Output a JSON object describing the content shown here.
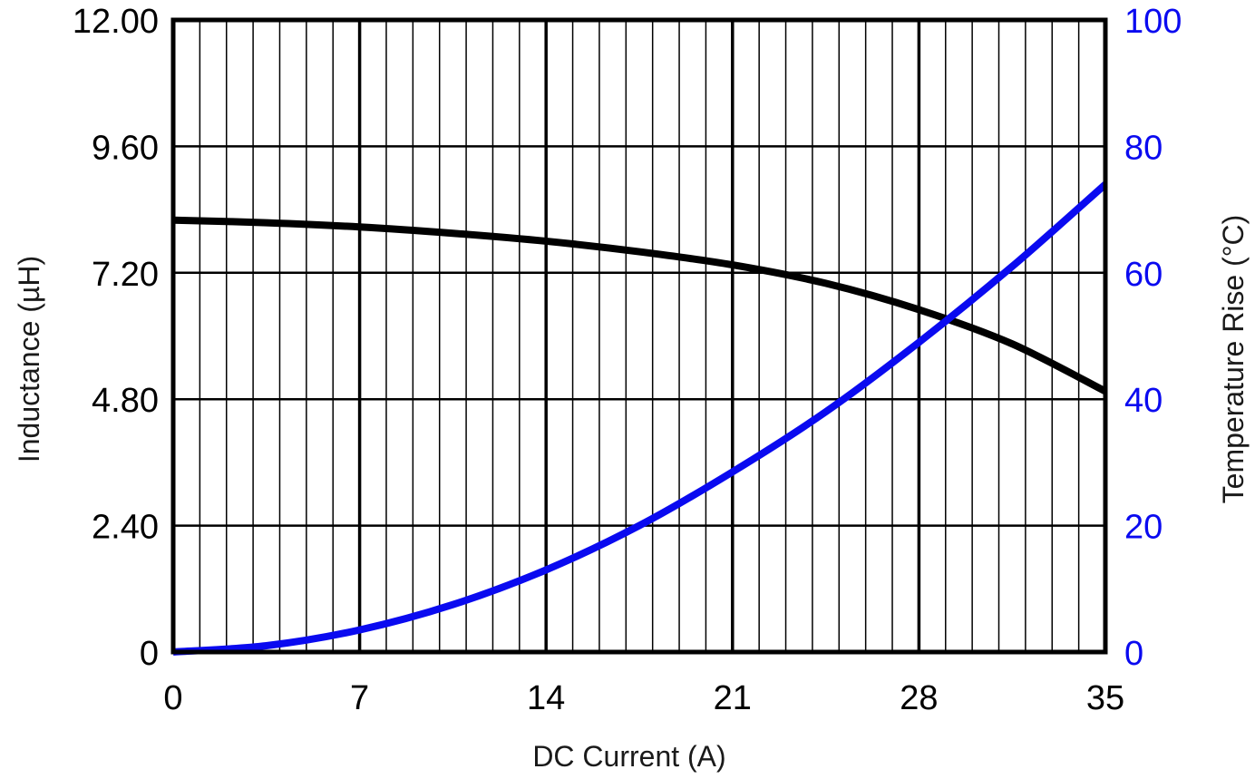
{
  "chart_data": {
    "type": "line",
    "title": "",
    "xlabel": "DC Current (A)",
    "ylabel": "Inductance (µH)",
    "ylabel_right": "Temperature Rise (°C)",
    "xlim": [
      0,
      35
    ],
    "ylim": [
      0,
      12
    ],
    "ylim_right": [
      0,
      100
    ],
    "grid": true,
    "x_ticks": [
      "0",
      "7",
      "14",
      "21",
      "28",
      "35"
    ],
    "y_ticks_left": [
      "0",
      "2.40",
      "4.80",
      "7.20",
      "9.60",
      "12.00"
    ],
    "y_ticks_right": [
      "0",
      "20",
      "40",
      "60",
      "80",
      "100"
    ],
    "series": [
      {
        "axis": "left",
        "color": "#000000",
        "x": [
          0,
          3.5,
          7,
          10.5,
          14,
          17.5,
          21,
          24.5,
          28,
          31.5,
          35
        ],
        "values": [
          8.2,
          8.15,
          8.07,
          7.95,
          7.8,
          7.6,
          7.35,
          7.0,
          6.5,
          5.85,
          4.95
        ]
      },
      {
        "axis": "right",
        "color": "#0a0af0",
        "x": [
          0,
          3.5,
          7,
          10.5,
          14,
          17.5,
          21,
          24.5,
          28,
          31.5,
          35
        ],
        "values": [
          0,
          1,
          3.5,
          7.5,
          13,
          20,
          28.5,
          38,
          49,
          61,
          74
        ]
      }
    ]
  }
}
